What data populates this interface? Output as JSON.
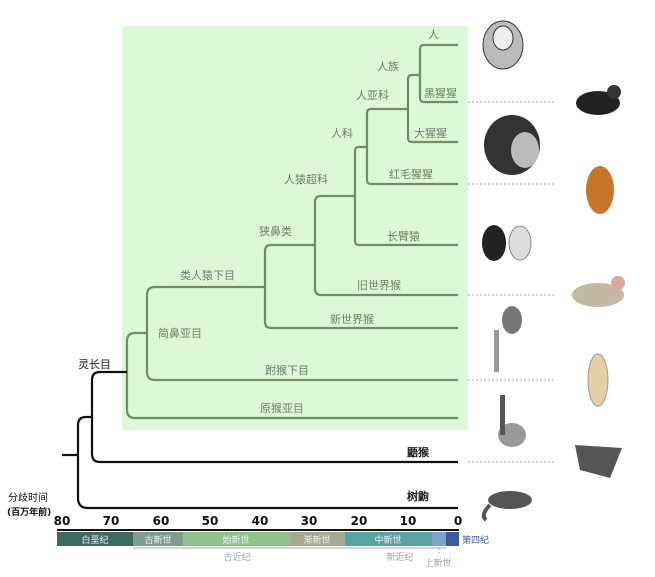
{
  "axis": {
    "title": "分歧时间",
    "unit": "(百万年前)",
    "ticks": [
      "80",
      "70",
      "60",
      "50",
      "40",
      "30",
      "20",
      "10",
      "0"
    ]
  },
  "taxa": {
    "human": "人",
    "chimpanzee": "黑猩猩",
    "gorilla": "大猩猩",
    "orangutan": "红毛猩猩",
    "gibbon": "长臂猿",
    "old_world_monkey": "旧世界猴",
    "new_world_monkey": "新世界猴",
    "tarsier": "跗猴下目",
    "strepsirrhini": "原猴亚目",
    "colugo": "鼯猴",
    "treeshrew": "树鼩"
  },
  "clades": {
    "hominini": "人族",
    "homininae": "人亚科",
    "hominidae": "人科",
    "hominoidea": "人猿超科",
    "catarrhini": "狭鼻类",
    "simiiformes": "类人猿下目",
    "haplorhini": "简鼻亚目",
    "primates": "灵长目"
  },
  "periods": {
    "cretaceous": "白垩纪",
    "paleocene": "古新世",
    "eocene": "始新世",
    "oligocene": "渐新世",
    "miocene": "中新世",
    "quaternary": "第四纪",
    "paleogene": "古近纪",
    "neogene": "新近纪",
    "pliocene": "上新世"
  },
  "colors": {
    "highlight": "#dcf8d6",
    "branch_primates": "#6f8f63",
    "cretaceous": "#3e6b5f",
    "paleocene": "#7f9f8d",
    "eocene": "#8fc38b",
    "oligocene": "#a8aa90",
    "miocene": "#5ba3a0",
    "pliocene": "#7ea3cf",
    "quaternary": "#3c5a9e"
  }
}
